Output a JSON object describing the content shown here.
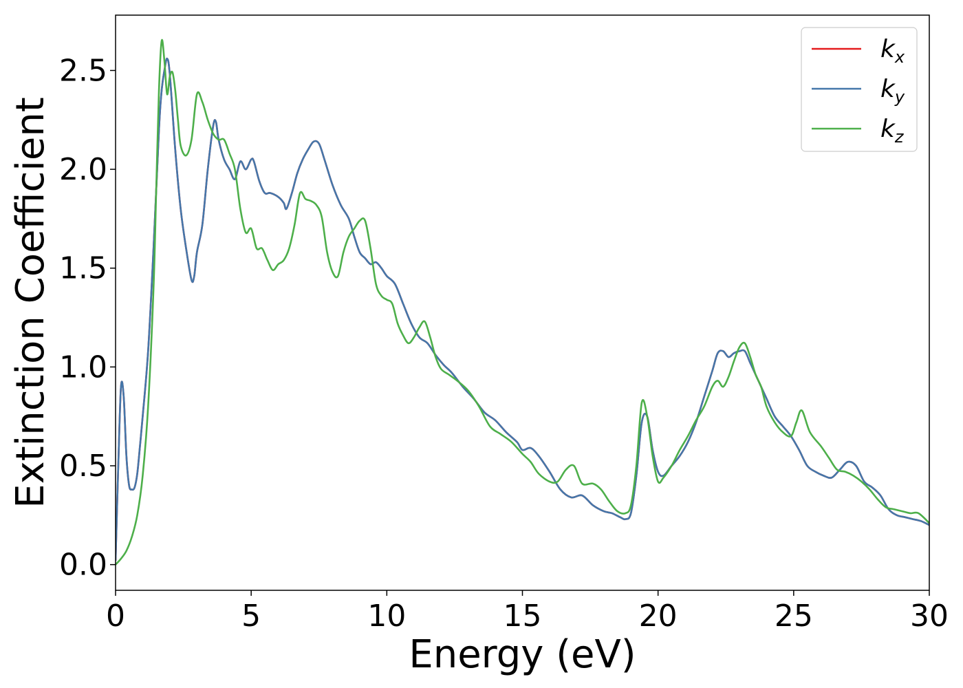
{
  "chart_data": {
    "type": "line",
    "xlabel": "Energy (eV)",
    "ylabel": "Extinction Coefficient",
    "xlim": [
      0,
      30
    ],
    "ylim": [
      -0.13,
      2.78
    ],
    "xticks": [
      0,
      5,
      10,
      15,
      20,
      25,
      30
    ],
    "xtick_labels": [
      "0",
      "5",
      "10",
      "15",
      "20",
      "25",
      "30"
    ],
    "yticks": [
      0.0,
      0.5,
      1.0,
      1.5,
      2.0,
      2.5
    ],
    "ytick_labels": [
      "0.0",
      "0.5",
      "1.0",
      "1.5",
      "2.0",
      "2.5"
    ],
    "grid": false,
    "legend_position": "top-right",
    "series": [
      {
        "name": "k",
        "subscript": "x",
        "color": "#e41a1c",
        "x": [
          0,
          0.1,
          0.2,
          0.3,
          0.4,
          0.5,
          0.6,
          0.7,
          0.8,
          0.9,
          1.0,
          1.2,
          1.4,
          1.6,
          1.7,
          1.8,
          1.9,
          2.0,
          2.2,
          2.4,
          2.6,
          2.8,
          2.9,
          3.0,
          3.2,
          3.4,
          3.6,
          3.7,
          3.8,
          4.0,
          4.2,
          4.4,
          4.6,
          4.8,
          5.0,
          5.1,
          5.3,
          5.5,
          5.7,
          6.0,
          6.2,
          6.3,
          6.5,
          6.7,
          6.9,
          7.1,
          7.3,
          7.5,
          7.7,
          8.0,
          8.3,
          8.6,
          8.8,
          9.0,
          9.2,
          9.4,
          9.6,
          9.8,
          10.0,
          10.3,
          10.6,
          10.9,
          11.2,
          11.5,
          11.8,
          12.1,
          12.4,
          12.8,
          13.2,
          13.6,
          14.0,
          14.4,
          14.8,
          15.0,
          15.3,
          15.6,
          16.0,
          16.4,
          16.8,
          17.2,
          17.6,
          18.0,
          18.3,
          18.6,
          18.8,
          19.0,
          19.2,
          19.4,
          19.6,
          19.8,
          20.0,
          20.2,
          20.5,
          20.8,
          21.1,
          21.4,
          21.7,
          22.0,
          22.2,
          22.4,
          22.6,
          22.8,
          23.0,
          23.2,
          23.4,
          23.6,
          23.8,
          24.0,
          24.3,
          24.6,
          24.9,
          25.2,
          25.5,
          25.8,
          26.1,
          26.4,
          26.7,
          27.0,
          27.3,
          27.6,
          27.9,
          28.2,
          28.5,
          28.8,
          29.1,
          29.4,
          29.7,
          30.0
        ],
        "y": [
          0.02,
          0.5,
          0.9,
          0.85,
          0.55,
          0.4,
          0.38,
          0.39,
          0.46,
          0.6,
          0.75,
          1.08,
          1.6,
          2.2,
          2.4,
          2.5,
          2.56,
          2.48,
          2.1,
          1.8,
          1.6,
          1.44,
          1.46,
          1.58,
          1.72,
          2.0,
          2.22,
          2.24,
          2.15,
          2.05,
          2.0,
          1.95,
          2.04,
          2.0,
          2.05,
          2.04,
          1.94,
          1.88,
          1.88,
          1.86,
          1.83,
          1.8,
          1.88,
          1.98,
          2.05,
          2.1,
          2.14,
          2.13,
          2.05,
          1.92,
          1.82,
          1.75,
          1.66,
          1.58,
          1.55,
          1.52,
          1.53,
          1.5,
          1.46,
          1.42,
          1.32,
          1.22,
          1.15,
          1.12,
          1.06,
          1.01,
          0.97,
          0.9,
          0.84,
          0.77,
          0.73,
          0.67,
          0.62,
          0.58,
          0.59,
          0.55,
          0.47,
          0.38,
          0.34,
          0.35,
          0.3,
          0.27,
          0.26,
          0.24,
          0.23,
          0.26,
          0.45,
          0.72,
          0.75,
          0.58,
          0.47,
          0.45,
          0.5,
          0.55,
          0.62,
          0.72,
          0.85,
          0.98,
          1.07,
          1.08,
          1.05,
          1.07,
          1.08,
          1.08,
          1.02,
          0.96,
          0.9,
          0.84,
          0.75,
          0.7,
          0.65,
          0.58,
          0.5,
          0.47,
          0.45,
          0.44,
          0.48,
          0.52,
          0.5,
          0.42,
          0.39,
          0.35,
          0.28,
          0.25,
          0.24,
          0.23,
          0.22,
          0.2
        ]
      },
      {
        "name": "k",
        "subscript": "y",
        "color": "#4477aa",
        "x": [
          0,
          0.1,
          0.2,
          0.3,
          0.4,
          0.5,
          0.6,
          0.7,
          0.8,
          0.9,
          1.0,
          1.2,
          1.4,
          1.6,
          1.7,
          1.8,
          1.9,
          2.0,
          2.2,
          2.4,
          2.6,
          2.8,
          2.9,
          3.0,
          3.2,
          3.4,
          3.6,
          3.7,
          3.8,
          4.0,
          4.2,
          4.4,
          4.6,
          4.8,
          5.0,
          5.1,
          5.3,
          5.5,
          5.7,
          6.0,
          6.2,
          6.3,
          6.5,
          6.7,
          6.9,
          7.1,
          7.3,
          7.5,
          7.7,
          8.0,
          8.3,
          8.6,
          8.8,
          9.0,
          9.2,
          9.4,
          9.6,
          9.8,
          10.0,
          10.3,
          10.6,
          10.9,
          11.2,
          11.5,
          11.8,
          12.1,
          12.4,
          12.8,
          13.2,
          13.6,
          14.0,
          14.4,
          14.8,
          15.0,
          15.3,
          15.6,
          16.0,
          16.4,
          16.8,
          17.2,
          17.6,
          18.0,
          18.3,
          18.6,
          18.8,
          19.0,
          19.2,
          19.4,
          19.6,
          19.8,
          20.0,
          20.2,
          20.5,
          20.8,
          21.1,
          21.4,
          21.7,
          22.0,
          22.2,
          22.4,
          22.6,
          22.8,
          23.0,
          23.2,
          23.4,
          23.6,
          23.8,
          24.0,
          24.3,
          24.6,
          24.9,
          25.2,
          25.5,
          25.8,
          26.1,
          26.4,
          26.7,
          27.0,
          27.3,
          27.6,
          27.9,
          28.2,
          28.5,
          28.8,
          29.1,
          29.4,
          29.7,
          30.0
        ],
        "y": [
          0.02,
          0.5,
          0.9,
          0.85,
          0.55,
          0.4,
          0.38,
          0.39,
          0.46,
          0.6,
          0.75,
          1.08,
          1.6,
          2.2,
          2.4,
          2.5,
          2.56,
          2.48,
          2.1,
          1.8,
          1.6,
          1.44,
          1.46,
          1.58,
          1.72,
          2.0,
          2.22,
          2.24,
          2.15,
          2.05,
          2.0,
          1.95,
          2.04,
          2.0,
          2.05,
          2.04,
          1.94,
          1.88,
          1.88,
          1.86,
          1.83,
          1.8,
          1.88,
          1.98,
          2.05,
          2.1,
          2.14,
          2.13,
          2.05,
          1.92,
          1.82,
          1.75,
          1.66,
          1.58,
          1.55,
          1.52,
          1.53,
          1.5,
          1.46,
          1.42,
          1.32,
          1.22,
          1.15,
          1.12,
          1.06,
          1.01,
          0.97,
          0.9,
          0.84,
          0.77,
          0.73,
          0.67,
          0.62,
          0.58,
          0.59,
          0.55,
          0.47,
          0.38,
          0.34,
          0.35,
          0.3,
          0.27,
          0.26,
          0.24,
          0.23,
          0.26,
          0.45,
          0.72,
          0.75,
          0.58,
          0.47,
          0.45,
          0.5,
          0.55,
          0.62,
          0.72,
          0.85,
          0.98,
          1.07,
          1.08,
          1.05,
          1.07,
          1.08,
          1.08,
          1.02,
          0.96,
          0.9,
          0.84,
          0.75,
          0.7,
          0.65,
          0.58,
          0.5,
          0.47,
          0.45,
          0.44,
          0.48,
          0.52,
          0.5,
          0.42,
          0.39,
          0.35,
          0.28,
          0.25,
          0.24,
          0.23,
          0.22,
          0.2
        ]
      },
      {
        "name": "k",
        "subscript": "z",
        "color": "#4daf4a",
        "x": [
          0,
          0.2,
          0.4,
          0.6,
          0.8,
          1.0,
          1.2,
          1.4,
          1.5,
          1.6,
          1.7,
          1.8,
          1.9,
          2.0,
          2.1,
          2.2,
          2.3,
          2.4,
          2.6,
          2.8,
          3.0,
          3.2,
          3.4,
          3.6,
          3.8,
          4.0,
          4.2,
          4.4,
          4.6,
          4.8,
          5.0,
          5.2,
          5.4,
          5.6,
          5.8,
          6.0,
          6.2,
          6.4,
          6.6,
          6.8,
          7.0,
          7.2,
          7.4,
          7.6,
          7.8,
          8.0,
          8.2,
          8.4,
          8.6,
          8.8,
          9.0,
          9.2,
          9.4,
          9.6,
          9.8,
          10.0,
          10.2,
          10.4,
          10.6,
          10.8,
          11.0,
          11.2,
          11.4,
          11.6,
          11.8,
          12.0,
          12.3,
          12.6,
          13.0,
          13.4,
          13.8,
          14.2,
          14.6,
          15.0,
          15.3,
          15.6,
          16.0,
          16.3,
          16.6,
          16.9,
          17.2,
          17.6,
          17.9,
          18.2,
          18.5,
          18.8,
          19.0,
          19.2,
          19.4,
          19.6,
          19.8,
          20.0,
          20.2,
          20.5,
          20.8,
          21.1,
          21.4,
          21.7,
          22.0,
          22.2,
          22.4,
          22.6,
          22.8,
          23.0,
          23.2,
          23.4,
          23.6,
          23.8,
          24.0,
          24.3,
          24.6,
          24.9,
          25.1,
          25.3,
          25.6,
          26.0,
          26.3,
          26.6,
          26.9,
          27.2,
          27.5,
          27.8,
          28.1,
          28.4,
          28.7,
          29.0,
          29.3,
          29.6,
          30.0
        ],
        "y": [
          0.0,
          0.03,
          0.07,
          0.14,
          0.25,
          0.45,
          0.8,
          1.4,
          1.9,
          2.4,
          2.65,
          2.55,
          2.38,
          2.47,
          2.49,
          2.4,
          2.25,
          2.12,
          2.07,
          2.15,
          2.38,
          2.34,
          2.25,
          2.18,
          2.15,
          2.15,
          2.08,
          2.0,
          1.8,
          1.68,
          1.7,
          1.6,
          1.6,
          1.54,
          1.49,
          1.52,
          1.54,
          1.6,
          1.72,
          1.88,
          1.85,
          1.84,
          1.82,
          1.76,
          1.58,
          1.48,
          1.46,
          1.58,
          1.66,
          1.7,
          1.74,
          1.74,
          1.6,
          1.42,
          1.36,
          1.34,
          1.32,
          1.22,
          1.16,
          1.12,
          1.15,
          1.2,
          1.23,
          1.15,
          1.05,
          0.99,
          0.96,
          0.93,
          0.88,
          0.8,
          0.7,
          0.66,
          0.62,
          0.56,
          0.52,
          0.46,
          0.42,
          0.42,
          0.48,
          0.5,
          0.41,
          0.41,
          0.38,
          0.32,
          0.27,
          0.26,
          0.3,
          0.5,
          0.82,
          0.75,
          0.55,
          0.42,
          0.44,
          0.5,
          0.58,
          0.65,
          0.73,
          0.8,
          0.9,
          0.93,
          0.9,
          0.95,
          1.03,
          1.1,
          1.12,
          1.05,
          0.96,
          0.9,
          0.8,
          0.72,
          0.67,
          0.65,
          0.72,
          0.78,
          0.67,
          0.6,
          0.54,
          0.48,
          0.47,
          0.45,
          0.42,
          0.38,
          0.33,
          0.29,
          0.28,
          0.27,
          0.26,
          0.26,
          0.21
        ]
      }
    ]
  }
}
